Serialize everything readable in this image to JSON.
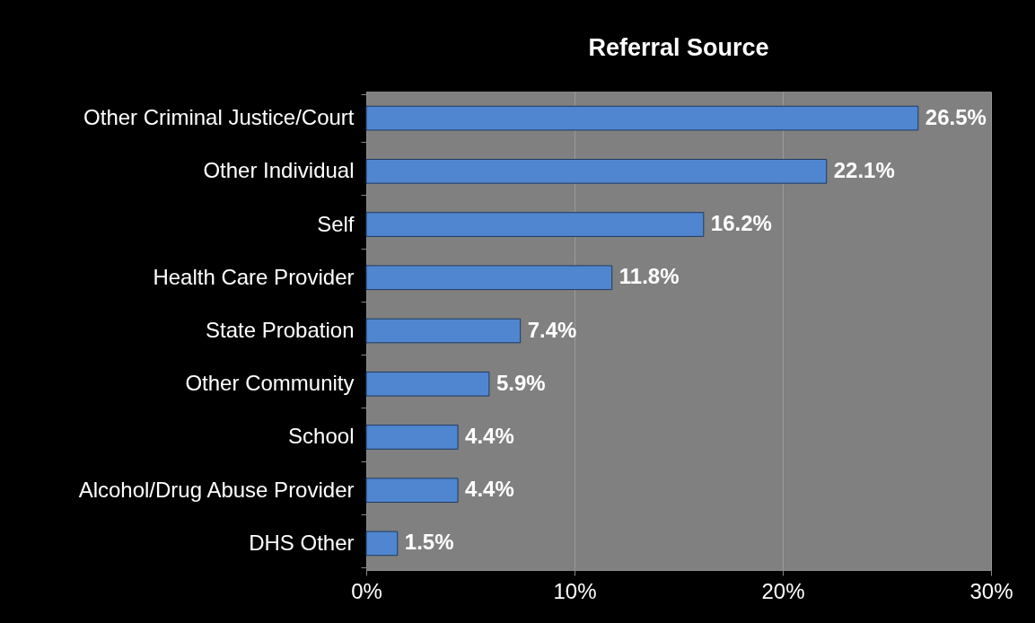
{
  "chart_data": {
    "type": "bar",
    "orientation": "horizontal",
    "title": "Referral Source",
    "categories": [
      "Other Criminal Justice/Court",
      "Other Individual",
      "Self",
      "Health Care Provider",
      "State Probation",
      "Other Community",
      "School",
      "Alcohol/Drug Abuse Provider",
      "DHS Other"
    ],
    "values": [
      26.5,
      22.1,
      16.2,
      11.8,
      7.4,
      5.9,
      4.4,
      4.4,
      1.5
    ],
    "value_labels": [
      "26.5%",
      "22.1%",
      "16.2%",
      "11.8%",
      "7.4%",
      "5.9%",
      "4.4%",
      "4.4%",
      "1.5%"
    ],
    "color": "#4f86cf",
    "xlim": [
      0,
      30
    ],
    "xticks": [
      {
        "value": 0,
        "label": "0%"
      },
      {
        "value": 10,
        "label": "10%"
      },
      {
        "value": 20,
        "label": "20%"
      },
      {
        "value": 30,
        "label": "30%"
      }
    ],
    "grid": "x"
  }
}
